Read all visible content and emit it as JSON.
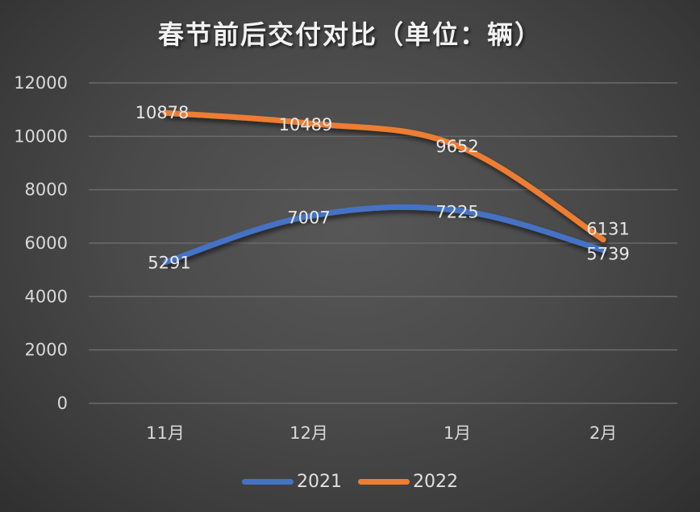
{
  "chart_data": {
    "type": "line",
    "title": "春节前后交付对比（单位：辆）",
    "xlabel": "",
    "ylabel": "",
    "categories": [
      "11月",
      "12月",
      "1月",
      "2月"
    ],
    "series": [
      {
        "name": "2021",
        "color": "#4472c4",
        "values": [
          5291,
          7007,
          7225,
          5739
        ]
      },
      {
        "name": "2022",
        "color": "#ed7d31",
        "values": [
          10878,
          10489,
          9652,
          6131
        ]
      }
    ],
    "ylim": [
      0,
      12000
    ],
    "yticks": [
      "0",
      "2000",
      "4000",
      "6000",
      "8000",
      "10000",
      "12000"
    ],
    "grid": true,
    "legend_position": "bottom",
    "data_labels": true
  },
  "legend": {
    "items": [
      {
        "label": "2021",
        "color": "#4472c4"
      },
      {
        "label": "2022",
        "color": "#ed7d31"
      }
    ]
  }
}
